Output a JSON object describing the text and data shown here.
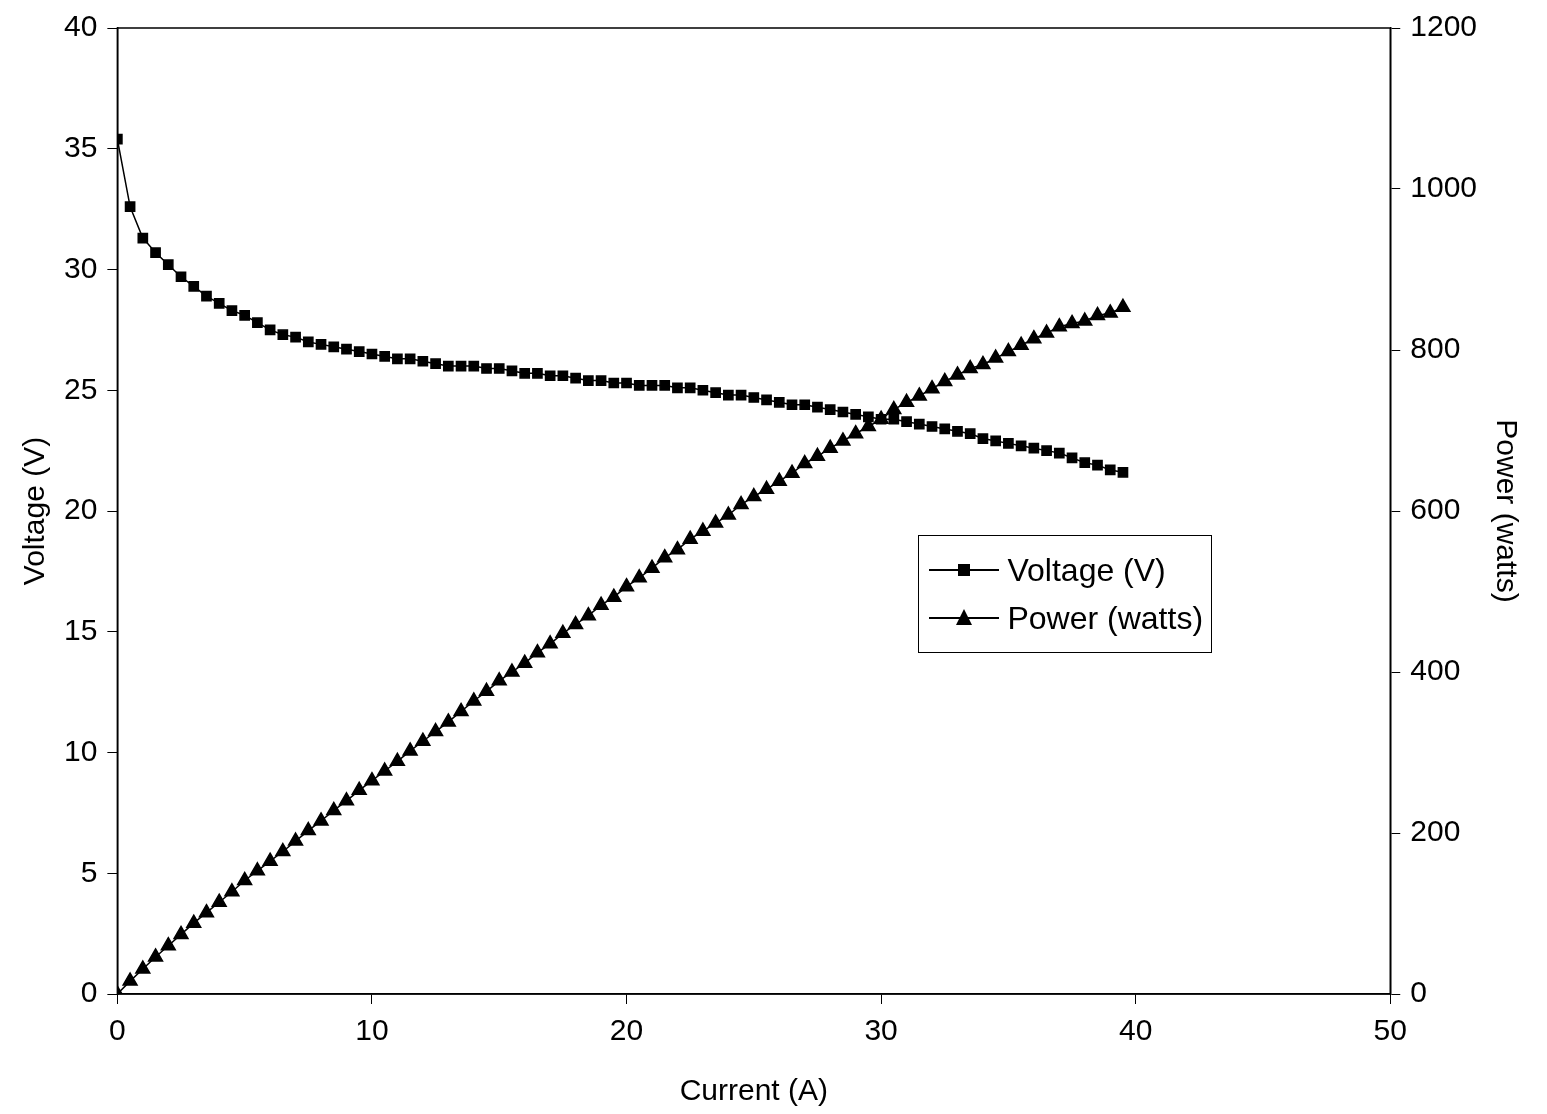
{
  "chart_data": {
    "type": "line",
    "xlabel": "Current (A)",
    "ylabel": "Voltage (V)",
    "y2label": "Power (watts)",
    "x": [
      0,
      0.5,
      1,
      1.5,
      2,
      2.5,
      3,
      3.5,
      4,
      4.5,
      5,
      5.5,
      6,
      6.5,
      7,
      7.5,
      8,
      8.5,
      9,
      9.5,
      10,
      10.5,
      11,
      11.5,
      12,
      12.5,
      13,
      13.5,
      14,
      14.5,
      15,
      15.5,
      16,
      16.5,
      17,
      17.5,
      18,
      18.5,
      19,
      19.5,
      20,
      20.5,
      21,
      21.5,
      22,
      22.5,
      23,
      23.5,
      24,
      24.5,
      25,
      25.5,
      26,
      26.5,
      27,
      27.5,
      28,
      28.5,
      29,
      29.5,
      30,
      30.5,
      31,
      31.5,
      32,
      32.5,
      33,
      33.5,
      34,
      34.5,
      35,
      35.5,
      36,
      36.5,
      37,
      37.5,
      38,
      38.5,
      39,
      39.5
    ],
    "series": [
      {
        "name": "Voltage (V)",
        "color": "#000000",
        "marker": "square",
        "values": [
          35.4,
          32.6,
          31.3,
          30.7,
          30.2,
          29.7,
          29.3,
          28.9,
          28.6,
          28.3,
          28.1,
          27.8,
          27.5,
          27.3,
          27.2,
          27.0,
          26.9,
          26.8,
          26.7,
          26.6,
          26.5,
          26.4,
          26.3,
          26.3,
          26.2,
          26.1,
          26.0,
          26.0,
          26.0,
          25.9,
          25.9,
          25.8,
          25.7,
          25.7,
          25.6,
          25.6,
          25.5,
          25.4,
          25.4,
          25.3,
          25.3,
          25.2,
          25.2,
          25.2,
          25.1,
          25.1,
          25.0,
          24.9,
          24.8,
          24.8,
          24.7,
          24.6,
          24.5,
          24.4,
          24.4,
          24.3,
          24.2,
          24.1,
          24.0,
          23.9,
          23.8,
          23.8,
          23.7,
          23.6,
          23.5,
          23.4,
          23.3,
          23.2,
          23.0,
          22.9,
          22.8,
          22.7,
          22.6,
          22.5,
          22.4,
          22.2,
          22.0,
          21.9,
          21.7,
          21.6
        ]
      },
      {
        "name": "Power (watts)",
        "color": "#000000",
        "marker": "triangle",
        "axis": "y2",
        "values": [
          0,
          16,
          31,
          46,
          60,
          74,
          88,
          101,
          114,
          127,
          141,
          153,
          165,
          177,
          190,
          203,
          215,
          228,
          240,
          253,
          265,
          277,
          289,
          302,
          314,
          326,
          338,
          351,
          364,
          376,
          389,
          400,
          411,
          424,
          435,
          448,
          459,
          470,
          483,
          493,
          506,
          517,
          529,
          542,
          552,
          565,
          575,
          585,
          595,
          608,
          618,
          627,
          637,
          647,
          659,
          668,
          678,
          687,
          696,
          705,
          714,
          726,
          735,
          743,
          752,
          761,
          769,
          777,
          782,
          790,
          798,
          806,
          814,
          821,
          829,
          833,
          836,
          843,
          846,
          853
        ]
      }
    ],
    "xlim": [
      0,
      50
    ],
    "xticks": [
      0,
      10,
      20,
      30,
      40,
      50
    ],
    "ylim": [
      0,
      40
    ],
    "yticks": [
      0,
      5,
      10,
      15,
      20,
      25,
      30,
      35,
      40
    ],
    "y2lim": [
      0,
      1200
    ],
    "y2ticks": [
      0,
      200,
      400,
      600,
      800,
      1000,
      1200
    ],
    "grid": false,
    "legend": "center right",
    "line_style": "solid"
  }
}
